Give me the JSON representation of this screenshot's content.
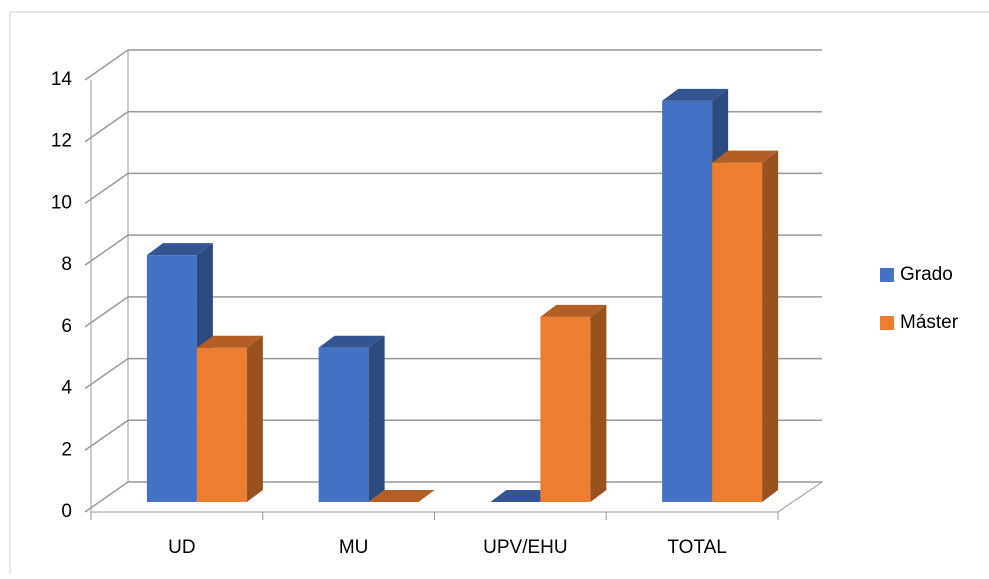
{
  "chart_data": {
    "type": "bar3d",
    "categories": [
      "UD",
      "MU",
      "UPV/EHU",
      "TOTAL"
    ],
    "series": [
      {
        "name": "Grado",
        "color": "#4472c4",
        "values": [
          8,
          5,
          0,
          13
        ]
      },
      {
        "name": "Máster",
        "color": "#ed7d31",
        "values": [
          5,
          0,
          6,
          11
        ]
      }
    ],
    "ylim": [
      0,
      14
    ],
    "yticks": [
      0,
      2,
      4,
      6,
      8,
      10,
      12,
      14
    ],
    "grid": true,
    "legend": "right"
  }
}
